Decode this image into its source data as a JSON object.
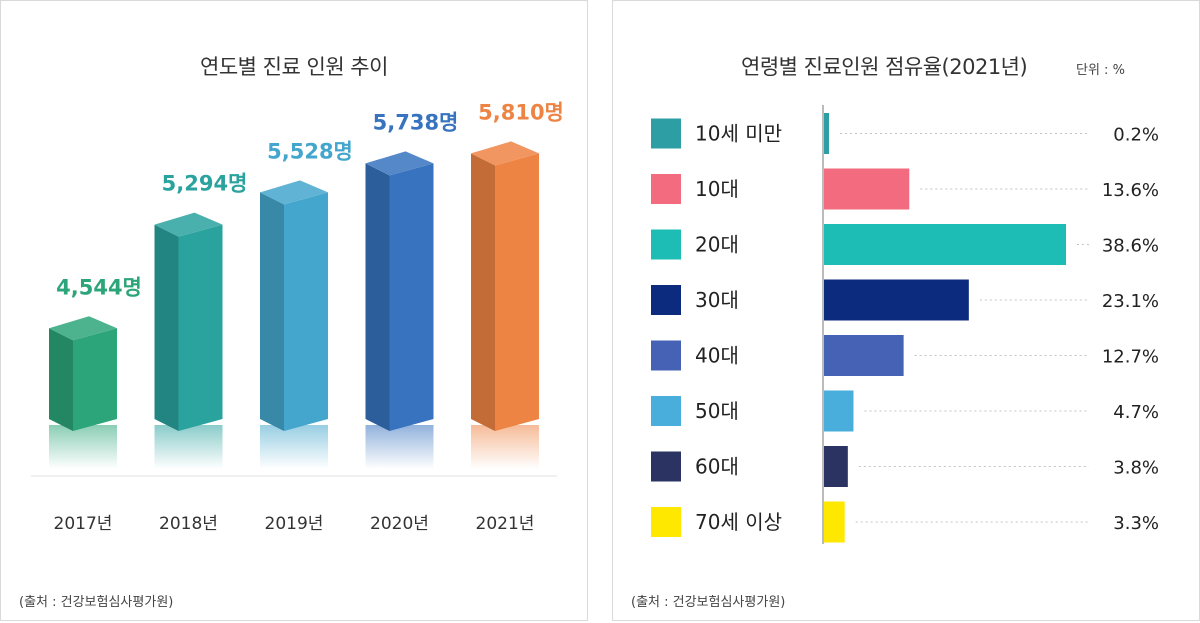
{
  "left_panel": {
    "title": "연도별 진료 인원 추이",
    "source": "(출처 : 건강보험심사평가원)"
  },
  "right_panel": {
    "title": "연령별 진료인원 점유율(2021년)",
    "unit": "단위 : %",
    "source": "(출처 : 건강보험심사평가원)"
  },
  "chart_data": [
    {
      "type": "bar",
      "title": "연도별 진료 인원 추이",
      "categories": [
        "2017년",
        "2018년",
        "2019년",
        "2020년",
        "2021년"
      ],
      "values": [
        4544,
        5294,
        5528,
        5738,
        5810
      ],
      "value_labels": [
        "4,544명",
        "5,294명",
        "5,528명",
        "5,738명",
        "5,810명"
      ],
      "colors": [
        "#2ca57a",
        "#2aa29e",
        "#44a6cc",
        "#3773be",
        "#ee8444"
      ],
      "ylim": [
        3800,
        5900
      ],
      "grid": false
    },
    {
      "type": "bar",
      "orientation": "horizontal",
      "title": "연령별 진료인원 점유율(2021년)",
      "unit": "단위 : %",
      "categories": [
        "10세 미만",
        "10대",
        "20대",
        "30대",
        "40대",
        "50대",
        "60대",
        "70세 이상"
      ],
      "values": [
        0.2,
        13.6,
        38.6,
        23.1,
        12.7,
        4.7,
        3.8,
        3.3
      ],
      "value_labels": [
        "0.2%",
        "13.6%",
        "38.6%",
        "23.1%",
        "12.7%",
        "4.7%",
        "3.8%",
        "3.3%"
      ],
      "colors": [
        "#2e9ea5",
        "#f26b7e",
        "#1dbcb5",
        "#0c2a7e",
        "#4562b5",
        "#4aaedd",
        "#2a3362",
        "#ffe800"
      ],
      "xlim": [
        0,
        38.6
      ],
      "grid": false
    }
  ]
}
